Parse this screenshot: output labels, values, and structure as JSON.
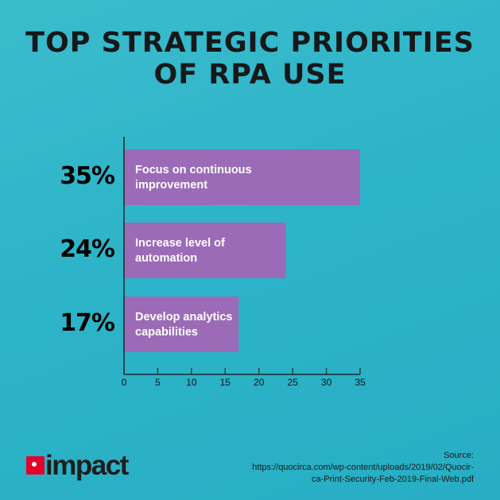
{
  "chart_data": {
    "type": "bar",
    "orientation": "horizontal",
    "title": "TOP STRATEGIC PRIORITIES OF RPA USE",
    "title_lines": [
      "TOP STRATEGIC PRIORITIES",
      "OF RPA USE"
    ],
    "categories": [
      "Focus on continuous improvement",
      "Increase level of automation",
      "Develop analytics capabilities"
    ],
    "category_lines": [
      [
        "Focus on continuous",
        "improvement"
      ],
      [
        "Increase level of",
        "automation"
      ],
      [
        "Develop analytics",
        "capabilities"
      ]
    ],
    "values": [
      35,
      24,
      17
    ],
    "value_labels": [
      "35%",
      "24%",
      "17%"
    ],
    "xlim": [
      0,
      35
    ],
    "xticks": [
      "0",
      "5",
      "10",
      "15",
      "20",
      "25",
      "30",
      "35"
    ],
    "grid": false,
    "bar_color": "#9b6bb8"
  },
  "branding": {
    "logo_text": "impact",
    "logo_color": "#e4002b"
  },
  "source": {
    "label": "Source:",
    "line1": "https://quocirca.com/wp-content/uploads/2019/02/Quocir-",
    "line2": "ca-Print-Security-Feb-2019-Final-Web.pdf"
  }
}
